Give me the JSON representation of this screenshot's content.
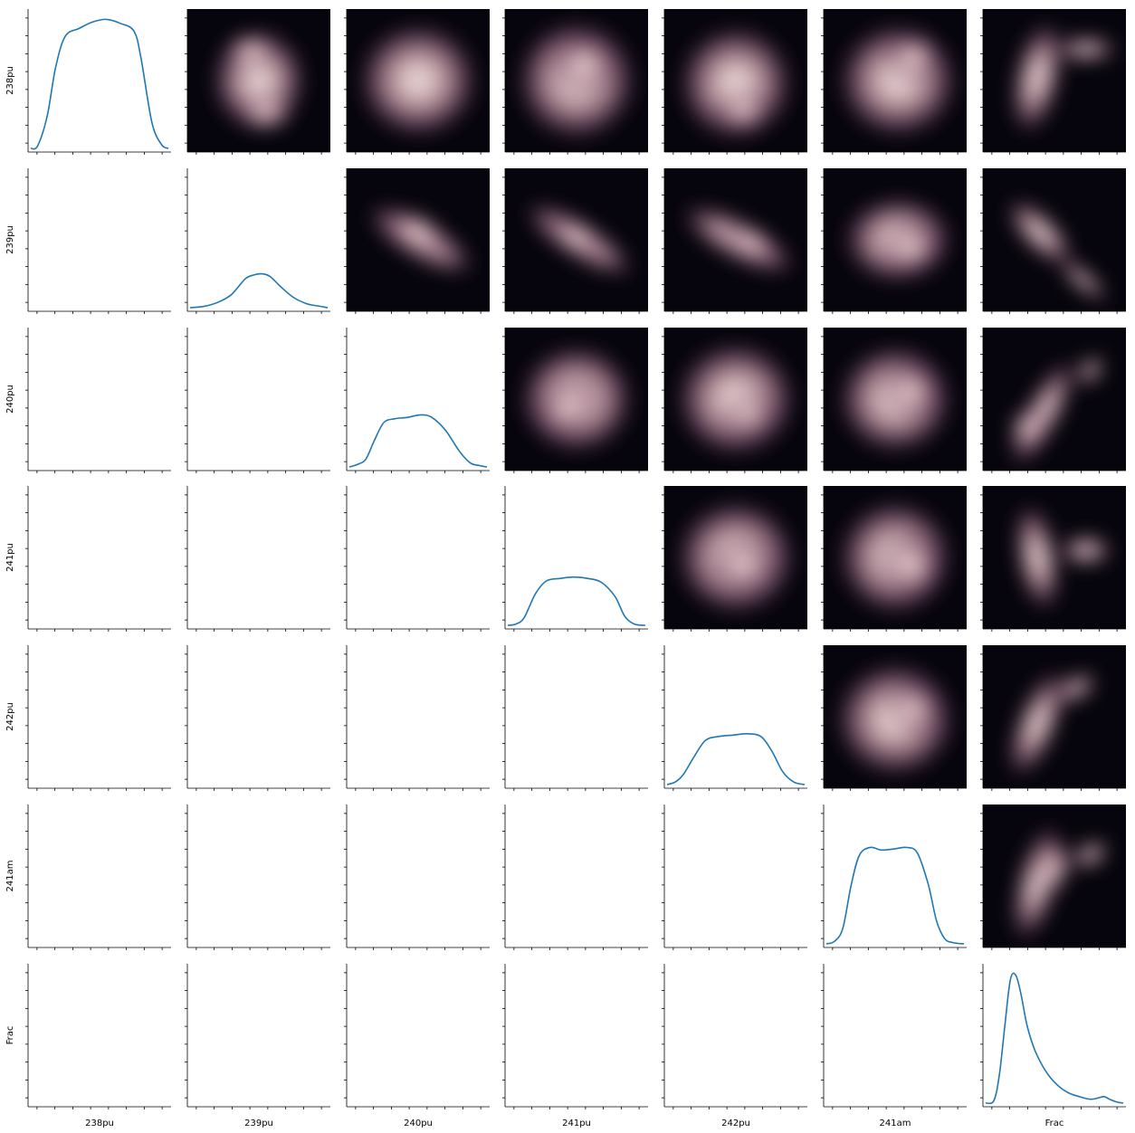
{
  "chart_data": {
    "type": "pairgrid",
    "variables": [
      "238pu",
      "239pu",
      "240pu",
      "241pu",
      "242pu",
      "241am",
      "Frac"
    ],
    "diagonal": {
      "type": "kde-line",
      "color": "#1f77b4",
      "curves": [
        {
          "variable": "238pu",
          "x": [
            0,
            0.05,
            0.12,
            0.18,
            0.25,
            0.35,
            0.45,
            0.55,
            0.65,
            0.75,
            0.8,
            0.88,
            0.95,
            1.0
          ],
          "y": [
            0.0,
            0.02,
            0.25,
            0.62,
            0.86,
            0.92,
            0.97,
            0.99,
            0.96,
            0.9,
            0.7,
            0.2,
            0.03,
            0.0
          ]
        },
        {
          "variable": "239pu",
          "x": [
            0,
            0.1,
            0.2,
            0.3,
            0.4,
            0.46,
            0.52,
            0.58,
            0.66,
            0.75,
            0.85,
            0.95,
            1.0
          ],
          "y": [
            0.0,
            0.01,
            0.04,
            0.1,
            0.22,
            0.25,
            0.26,
            0.24,
            0.16,
            0.08,
            0.03,
            0.01,
            0.0
          ]
        },
        {
          "variable": "240pu",
          "x": [
            0,
            0.06,
            0.12,
            0.18,
            0.25,
            0.33,
            0.42,
            0.52,
            0.6,
            0.7,
            0.8,
            0.88,
            0.95,
            1.0
          ],
          "y": [
            0.0,
            0.02,
            0.06,
            0.2,
            0.34,
            0.37,
            0.38,
            0.4,
            0.38,
            0.28,
            0.12,
            0.03,
            0.01,
            0.0
          ]
        },
        {
          "variable": "241pu",
          "x": [
            0,
            0.06,
            0.12,
            0.2,
            0.28,
            0.38,
            0.48,
            0.58,
            0.68,
            0.78,
            0.85,
            0.92,
            1.0
          ],
          "y": [
            0.0,
            0.01,
            0.06,
            0.24,
            0.34,
            0.36,
            0.37,
            0.36,
            0.33,
            0.22,
            0.07,
            0.01,
            0.0
          ]
        },
        {
          "variable": "242pu",
          "x": [
            0,
            0.06,
            0.12,
            0.2,
            0.28,
            0.38,
            0.48,
            0.58,
            0.68,
            0.76,
            0.84,
            0.92,
            1.0
          ],
          "y": [
            0.0,
            0.02,
            0.08,
            0.22,
            0.34,
            0.37,
            0.38,
            0.39,
            0.37,
            0.26,
            0.1,
            0.02,
            0.0
          ]
        },
        {
          "variable": "241am",
          "x": [
            0,
            0.06,
            0.12,
            0.18,
            0.24,
            0.32,
            0.4,
            0.5,
            0.58,
            0.66,
            0.74,
            0.8,
            0.86,
            0.92,
            1.0
          ],
          "y": [
            0.0,
            0.02,
            0.12,
            0.45,
            0.68,
            0.74,
            0.72,
            0.73,
            0.74,
            0.7,
            0.46,
            0.18,
            0.04,
            0.01,
            0.0
          ]
        },
        {
          "variable": "Frac",
          "x": [
            0,
            0.06,
            0.1,
            0.14,
            0.18,
            0.22,
            0.26,
            0.3,
            0.36,
            0.44,
            0.52,
            0.6,
            0.68,
            0.76,
            0.82,
            0.86,
            0.9,
            0.95,
            1.0
          ],
          "y": [
            0.0,
            0.02,
            0.22,
            0.6,
            0.95,
            0.98,
            0.82,
            0.6,
            0.4,
            0.24,
            0.14,
            0.08,
            0.05,
            0.03,
            0.04,
            0.05,
            0.03,
            0.01,
            0.0
          ]
        }
      ]
    },
    "upper": {
      "type": "kde-heatmap",
      "colormap": [
        "#06040c",
        "#2a1a36",
        "#5a3460",
        "#8a5a7a",
        "#b48a98",
        "#dcbcc0",
        "#f6ece8"
      ],
      "background": "#06040c"
    },
    "lower": {
      "type": "empty"
    },
    "ticks_per_axis": 8
  }
}
